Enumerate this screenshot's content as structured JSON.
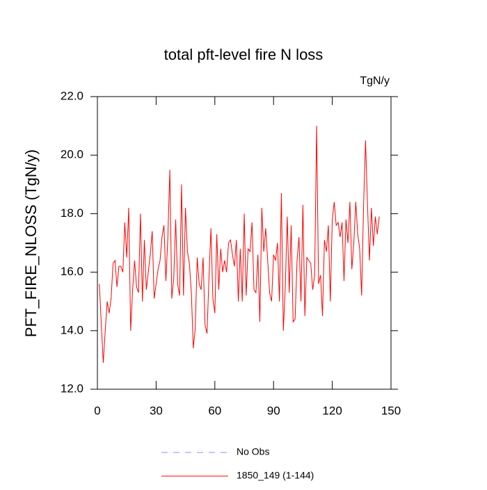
{
  "chart_data": {
    "type": "line",
    "title": "total pft-level fire N loss",
    "unit_label": "TgN/y",
    "y_label": "PFT_FIRE_NLOSS  (TgN/y)",
    "xlim": [
      0,
      150
    ],
    "xticks": [
      0,
      30,
      60,
      90,
      120,
      150
    ],
    "ylim": [
      12,
      22
    ],
    "yticks": [
      {
        "value": 12,
        "label": "12.0"
      },
      {
        "value": 14,
        "label": "14.0"
      },
      {
        "value": 16,
        "label": "16.0"
      },
      {
        "value": 18,
        "label": "18.0"
      },
      {
        "value": 20,
        "label": "20.0"
      },
      {
        "value": 22,
        "label": "22.0"
      }
    ],
    "obs": {
      "name": "No Obs",
      "color": "#8c8cff",
      "dash": true
    },
    "x": [
      1,
      2,
      3,
      4,
      5,
      6,
      7,
      8,
      9,
      10,
      11,
      12,
      13,
      14,
      15,
      16,
      17,
      18,
      19,
      20,
      21,
      22,
      23,
      24,
      25,
      26,
      27,
      28,
      29,
      30,
      31,
      32,
      33,
      34,
      35,
      36,
      37,
      38,
      39,
      40,
      41,
      42,
      43,
      44,
      45,
      46,
      47,
      48,
      49,
      50,
      51,
      52,
      53,
      54,
      55,
      56,
      57,
      58,
      59,
      60,
      61,
      62,
      63,
      64,
      65,
      66,
      67,
      68,
      69,
      70,
      71,
      72,
      73,
      74,
      75,
      76,
      77,
      78,
      79,
      80,
      81,
      82,
      83,
      84,
      85,
      86,
      87,
      88,
      89,
      90,
      91,
      92,
      93,
      94,
      95,
      96,
      97,
      98,
      99,
      100,
      101,
      102,
      103,
      104,
      105,
      106,
      107,
      108,
      109,
      110,
      111,
      112,
      113,
      114,
      115,
      116,
      117,
      118,
      119,
      120,
      121,
      122,
      123,
      124,
      125,
      126,
      127,
      128,
      129,
      130,
      131,
      132,
      133,
      134,
      135,
      136,
      137,
      138,
      139,
      140,
      141,
      142,
      143,
      144
    ],
    "series": [
      {
        "name": "1850_149 (1-144)",
        "color": "#ff0000",
        "values": [
          15.6,
          14.2,
          12.9,
          14.0,
          15.0,
          14.6,
          15.1,
          16.3,
          16.4,
          15.5,
          16.2,
          16.2,
          16.0,
          17.7,
          16.5,
          18.2,
          14.0,
          15.4,
          16.4,
          15.5,
          15.3,
          18.0,
          15.0,
          17.1,
          15.4,
          16.0,
          16.6,
          17.4,
          15.1,
          15.6,
          16.1,
          16.4,
          17.2,
          17.6,
          15.7,
          17.2,
          19.5,
          15.1,
          15.8,
          17.8,
          15.6,
          15.2,
          19.0,
          15.2,
          18.2,
          16.7,
          16.3,
          15.3,
          13.4,
          14.1,
          16.5,
          15.6,
          15.4,
          16.5,
          14.2,
          13.9,
          15.8,
          17.5,
          15.1,
          14.6,
          17.3,
          15.4,
          16.8,
          16.0,
          16.4,
          16.0,
          17.0,
          17.1,
          16.6,
          16.2,
          17.1,
          15.0,
          16.8,
          15.0,
          18.0,
          15.2,
          16.8,
          16.7,
          17.7,
          15.4,
          15.3,
          16.6,
          14.3,
          18.2,
          16.7,
          17.5,
          16.4,
          15.3,
          15.0,
          16.6,
          16.4,
          17.0,
          15.0,
          18.7,
          14.0,
          15.5,
          17.9,
          15.3,
          17.6,
          14.3,
          14.4,
          16.4,
          17.2,
          15.0,
          18.3,
          14.5,
          16.5,
          16.4,
          16.3,
          15.4,
          15.9,
          21.0,
          15.6,
          15.9,
          14.5,
          17.1,
          16.7,
          17.6,
          15.0,
          17.8,
          18.4,
          17.6,
          17.7,
          17.2,
          17.7,
          15.7,
          17.8,
          17.0,
          18.4,
          16.1,
          17.0,
          18.4,
          17.3,
          16.8,
          15.2,
          18.3,
          20.5,
          18.3,
          16.4,
          18.2,
          16.9,
          17.9,
          17.3,
          17.9
        ]
      }
    ]
  }
}
